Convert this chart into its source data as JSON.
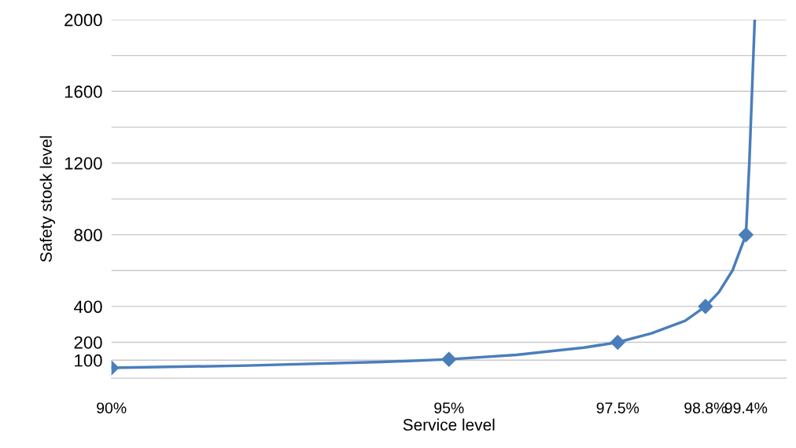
{
  "chart_data": {
    "type": "line",
    "xlabel": "Service level",
    "ylabel": "Safety stock level",
    "xlim": [
      90,
      100
    ],
    "xticks": [
      {
        "value": 90,
        "label": "90%"
      },
      {
        "value": 95,
        "label": "95%"
      },
      {
        "value": 97.5,
        "label": "97.5%"
      },
      {
        "value": 98.8,
        "label": "98.8%"
      },
      {
        "value": 99.4,
        "label": "99.4%"
      }
    ],
    "ylim": [
      0,
      2000
    ],
    "yticks": [
      100,
      200,
      400,
      {
        "value": 600,
        "label": null
      },
      800,
      {
        "value": 1000,
        "label": null
      },
      1200,
      {
        "value": 1400,
        "label": null
      },
      1600,
      {
        "value": 1800,
        "label": null
      },
      2000
    ],
    "grid": "y",
    "series": [
      {
        "color": "#4a7ebb",
        "marker": "none",
        "x": [
          90,
          92,
          94,
          95,
          96,
          97,
          97.5,
          98,
          98.5,
          98.8,
          99,
          99.2,
          99.4,
          99.45,
          99.5,
          99.53
        ],
        "values": [
          57,
          70,
          90,
          105,
          130,
          170,
          200,
          250,
          320,
          400,
          480,
          600,
          800,
          1200,
          1700,
          2000
        ]
      },
      {
        "type": "scatter",
        "color": "#4a7ebb",
        "marker": "diamond",
        "x": [
          90,
          95,
          97.5,
          98.8,
          99.4
        ],
        "values": [
          57,
          105,
          200,
          400,
          800
        ]
      }
    ]
  }
}
